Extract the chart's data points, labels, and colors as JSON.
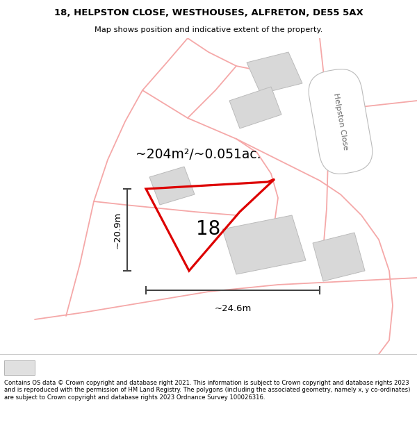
{
  "title_line1": "18, HELPSTON CLOSE, WESTHOUSES, ALFRETON, DE55 5AX",
  "title_line2": "Map shows position and indicative extent of the property.",
  "footer_text": "Contains OS data © Crown copyright and database right 2021. This information is subject to Crown copyright and database rights 2023 and is reproduced with the permission of HM Land Registry. The polygons (including the associated geometry, namely x, y co-ordinates) are subject to Crown copyright and database rights 2023 Ordnance Survey 100026316.",
  "bg_color": "#ffffff",
  "road_color": "#f5a8a8",
  "building_color": "#d8d8d8",
  "building_edge": "#bbbbbb",
  "property_color": "#dd0000",
  "dim_color": "#444444",
  "area_text": "~204m²/~0.051ac.",
  "plot_label": "18",
  "dim_h_label": "~20.9m",
  "dim_w_label": "~24.6m",
  "road_label": "Helpston Close"
}
